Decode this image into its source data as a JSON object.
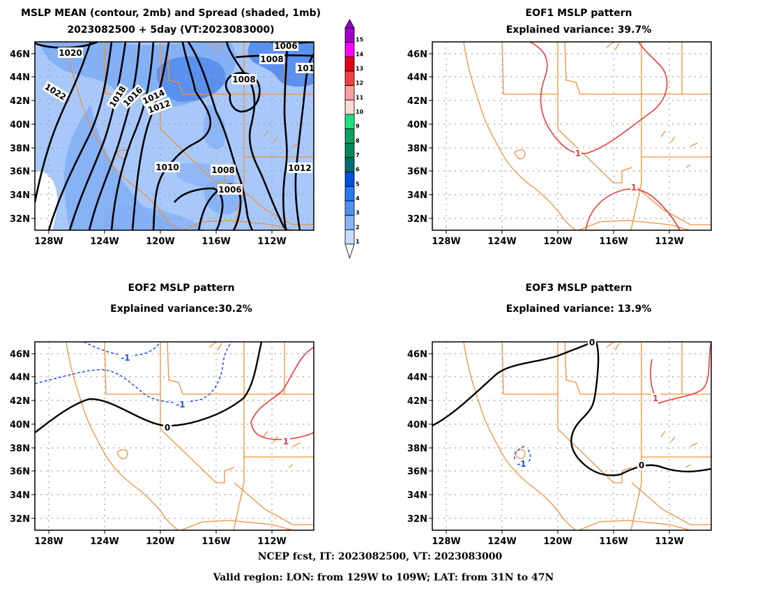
{
  "panels": [
    {
      "id": "mean",
      "title_lines": [
        "MSLP MEAN (contour, 2mb) and Spread (shaded, 1mb)",
        "2023082500 + 5day (VT:2023083000)"
      ],
      "contour_labels": [
        "1020",
        "1022",
        "1018",
        "1016",
        "1014",
        "1012",
        "1010",
        "1008",
        "1008",
        "1008",
        "1006",
        "1006",
        "1012",
        "101"
      ]
    },
    {
      "id": "eof1",
      "title_lines": [
        "EOF1 MSLP pattern",
        "Explained variance: 39.7%"
      ],
      "contour_labels": [
        "1",
        "1"
      ]
    },
    {
      "id": "eof2",
      "title_lines": [
        "EOF2 MSLP pattern",
        "Explained variance:30.2%"
      ],
      "contour_labels": [
        "-1",
        "-1",
        "0",
        "1"
      ]
    },
    {
      "id": "eof3",
      "title_lines": [
        "EOF3 MSLP pattern",
        "Explained variance: 13.9%"
      ],
      "contour_labels": [
        "0",
        "0",
        "1",
        "-1"
      ]
    }
  ],
  "axes": {
    "lat_ticks": [
      "46N",
      "44N",
      "42N",
      "40N",
      "38N",
      "36N",
      "34N",
      "32N"
    ],
    "lon_ticks": [
      "128W",
      "124W",
      "120W",
      "116W",
      "112W"
    ]
  },
  "colorbar": {
    "levels": [
      "15",
      "14",
      "13",
      "12",
      "11",
      "10",
      "9",
      "8",
      "7",
      "6",
      "5",
      "4",
      "3",
      "2",
      "1"
    ],
    "colors": [
      "#a000c8",
      "#ff00ff",
      "#e0001a",
      "#f04040",
      "#f8a0a0",
      "#ffd8d8",
      "#20e080",
      "#10a060",
      "#008858",
      "#006e6e",
      "#0050e0",
      "#2878f0",
      "#5090f0",
      "#88b4f8",
      "#c8dcfc"
    ]
  },
  "colors": {
    "map_outline": "#f0903a",
    "positive_contour": "#e83c3c",
    "negative_contour": "#2050f0",
    "zero_contour": "#000000",
    "grid": "#a0a0a0",
    "spread_levels": [
      "#ffffff",
      "#a8c8fa",
      "#80aef5",
      "#5a90ee"
    ]
  },
  "footer": {
    "line1": "NCEP fcst, IT: 2023082500, VT: 2023083000",
    "line2": "Valid region: LON: from 129W to 109W; LAT: from 31N to 47N"
  }
}
